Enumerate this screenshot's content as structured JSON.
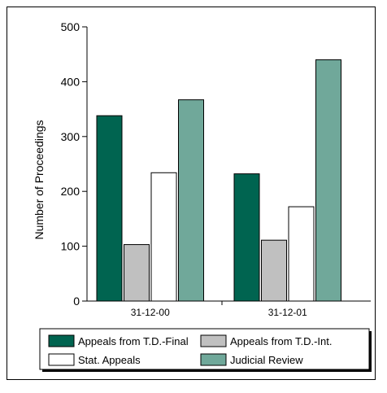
{
  "chart_data": {
    "type": "bar",
    "ylabel": "Number of Proceedings",
    "xlabel": "",
    "ylim": [
      0,
      500
    ],
    "yticks": [
      0,
      100,
      200,
      300,
      400,
      500
    ],
    "grid": false,
    "legend_position": "bottom",
    "categories": [
      "31-12-00",
      "31-12-01"
    ],
    "series": [
      {
        "name": "Appeals from T.D.-Final",
        "color": "#006450",
        "values": [
          338,
          232
        ]
      },
      {
        "name": "Appeals from T.D.-Int.",
        "color": "#c0c0c0",
        "values": [
          103,
          111
        ]
      },
      {
        "name": "Stat. Appeals",
        "color": "#ffffff",
        "values": [
          234,
          172
        ]
      },
      {
        "name": "Judicial Review",
        "color": "#70a89a",
        "values": [
          367,
          440
        ]
      }
    ]
  }
}
